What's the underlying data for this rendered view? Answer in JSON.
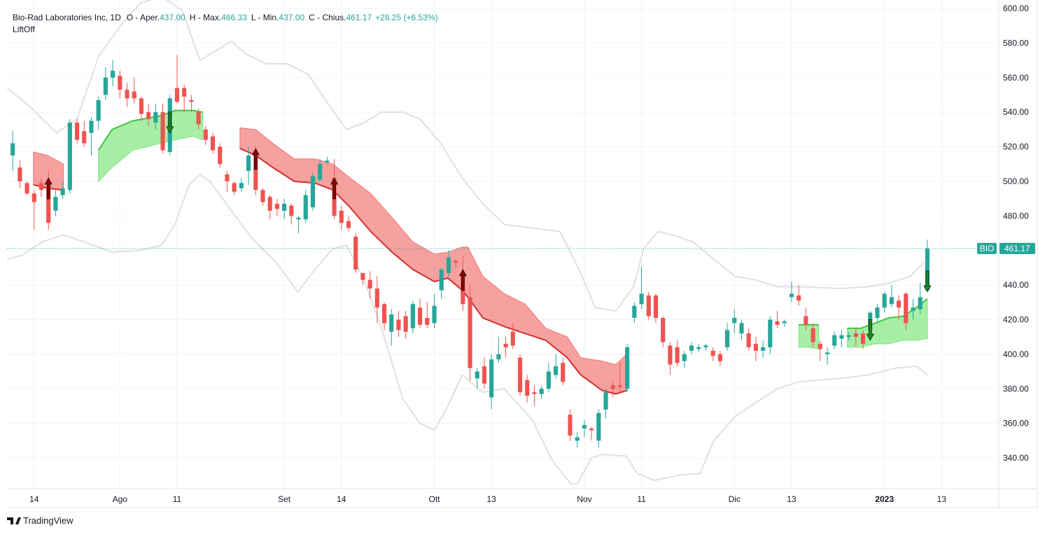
{
  "chart_data": {
    "type": "candlestick",
    "title": "Bio-Rad Laboratories Inc, 1D",
    "fields": [
      {
        "label": "O - Aper.",
        "value": "437.00"
      },
      {
        "label": "H - Max.",
        "value": "466.33"
      },
      {
        "label": "L - Min.",
        "value": "437.00"
      },
      {
        "label": "C - Chius.",
        "value": "461.17"
      }
    ],
    "change": "+28.25 (+6.53%)",
    "indicator": "LiftOff",
    "branding": "TradingView",
    "up_color": "#26a69a",
    "down_color": "#ef5350",
    "grid": true,
    "xlim": [
      -0.8,
      138
    ],
    "xticks": [
      {
        "value": 3,
        "label": "14"
      },
      {
        "value": 15,
        "label": "Ago"
      },
      {
        "value": 23,
        "label": "11"
      },
      {
        "value": 38,
        "label": "Set"
      },
      {
        "value": 46,
        "label": "14"
      },
      {
        "value": 59,
        "label": "Ott"
      },
      {
        "value": 67,
        "label": "13"
      },
      {
        "value": 80,
        "label": "Nov"
      },
      {
        "value": 88,
        "label": "11"
      },
      {
        "value": 101,
        "label": "Dic"
      },
      {
        "value": 109,
        "label": "13"
      },
      {
        "value": 122,
        "label": "2023"
      },
      {
        "value": 130,
        "label": "13"
      }
    ],
    "ylim": [
      322.2,
      604.9
    ],
    "yticks": [
      {
        "value": 340,
        "label": "340.00"
      },
      {
        "value": 360,
        "label": "360.00"
      },
      {
        "value": 380,
        "label": "380.00"
      },
      {
        "value": 400,
        "label": "400.00"
      },
      {
        "value": 420,
        "label": "420.00"
      },
      {
        "value": 440,
        "label": "440.00"
      },
      {
        "value": 460,
        "label": "460.00"
      },
      {
        "value": 480,
        "label": "480.00"
      },
      {
        "value": 500,
        "label": "500.00"
      },
      {
        "value": 520,
        "label": "520.00"
      },
      {
        "value": 540,
        "label": "540.00"
      },
      {
        "value": 560,
        "label": "560.00"
      },
      {
        "value": 580,
        "label": "580.00"
      },
      {
        "value": 600,
        "label": "600.00"
      }
    ],
    "open": [
      515,
      508,
      499,
      493,
      499,
      499,
      483,
      492,
      495,
      534,
      529,
      528,
      535,
      550,
      560,
      561,
      553,
      552,
      548,
      540,
      534,
      540,
      517,
      554,
      554,
      547,
      540,
      530,
      526,
      520,
      504,
      499,
      496,
      506,
      516,
      495,
      491,
      487,
      483,
      486,
      478,
      478,
      485,
      501,
      511,
      502,
      483,
      477,
      468,
      447,
      443,
      438,
      429,
      413,
      420,
      422,
      415,
      427,
      421,
      418,
      437,
      447,
      454,
      447,
      433,
      386,
      393,
      375,
      397,
      406,
      413,
      398,
      385,
      378,
      377,
      380,
      388,
      395,
      365,
      350,
      357,
      357,
      350,
      368,
      382,
      382,
      380,
      421,
      429,
      434,
      434,
      421,
      405,
      404,
      396,
      402,
      403,
      404,
      402,
      400,
      404,
      418,
      412,
      412,
      406,
      402,
      404,
      419,
      418,
      433,
      434,
      422,
      415,
      406,
      400,
      405,
      409,
      410,
      412,
      412,
      414,
      421,
      427,
      429,
      431,
      435,
      425,
      426,
      437
    ],
    "high": [
      529,
      512,
      500,
      495,
      502,
      506,
      495,
      500,
      536,
      536,
      535,
      537,
      549,
      566,
      570,
      564,
      557,
      560,
      549,
      545,
      545,
      545,
      550,
      573,
      556,
      550,
      542,
      532,
      528,
      522,
      506,
      500,
      502,
      520,
      520,
      496,
      492,
      490,
      490,
      487,
      480,
      495,
      505,
      513,
      514,
      513,
      486,
      480,
      470,
      447,
      448,
      445,
      430,
      426,
      425,
      425,
      431,
      432,
      430,
      435,
      450,
      460,
      455,
      457,
      440,
      392,
      398,
      400,
      410,
      410,
      418,
      400,
      388,
      382,
      382,
      395,
      400,
      398,
      368,
      355,
      362,
      358,
      368,
      380,
      384,
      395,
      406,
      430,
      451,
      436,
      435,
      422,
      407,
      408,
      402,
      407,
      406,
      406,
      404,
      402,
      418,
      426,
      420,
      415,
      410,
      408,
      422,
      425,
      420,
      442,
      440,
      427,
      418,
      408,
      404,
      413,
      414,
      413,
      415,
      414,
      425,
      429,
      436,
      440,
      434,
      436,
      432,
      441,
      466.33
    ],
    "low": [
      506,
      496,
      492,
      472,
      491,
      472,
      480,
      490,
      493,
      522,
      520,
      515,
      530,
      547,
      555,
      548,
      543,
      545,
      535,
      532,
      530,
      516,
      515,
      545,
      540,
      540,
      530,
      521,
      516,
      508,
      494,
      492,
      494,
      498,
      492,
      486,
      478,
      480,
      478,
      475,
      470,
      476,
      483,
      500,
      510,
      478,
      472,
      471,
      447,
      440,
      432,
      418,
      414,
      405,
      410,
      409,
      412,
      415,
      415,
      415,
      432,
      445,
      450,
      425,
      385,
      380,
      380,
      368,
      395,
      398,
      403,
      376,
      372,
      370,
      374,
      378,
      386,
      382,
      350,
      346,
      352,
      350,
      346,
      363,
      375,
      378,
      378,
      418,
      426,
      420,
      418,
      404,
      388,
      393,
      392,
      400,
      401,
      402,
      396,
      393,
      402,
      412,
      408,
      402,
      396,
      398,
      400,
      415,
      416,
      430,
      428,
      414,
      404,
      396,
      394,
      403,
      404,
      408,
      405,
      403,
      410,
      418,
      424,
      427,
      420,
      414,
      420,
      423,
      437
    ],
    "close": [
      522,
      500,
      493,
      488,
      495,
      476,
      491,
      496,
      534,
      524,
      522,
      535,
      547,
      560,
      564,
      553,
      548,
      548,
      539,
      536,
      540,
      518,
      548,
      546,
      549,
      546,
      533,
      524,
      518,
      510,
      500,
      494,
      499,
      515,
      495,
      488,
      483,
      484,
      487,
      480,
      479,
      492,
      503,
      510,
      512,
      480,
      476,
      473,
      449,
      443,
      438,
      427,
      418,
      423,
      414,
      413,
      429,
      417,
      417,
      428,
      449,
      456,
      453,
      429,
      392,
      390,
      383,
      397,
      400,
      404,
      405,
      378,
      376,
      377,
      380,
      390,
      393,
      384,
      353,
      352,
      359,
      356,
      366,
      378,
      380,
      381,
      404,
      428,
      435,
      422,
      421,
      407,
      394,
      395,
      400,
      405,
      404,
      405,
      399,
      396,
      414,
      421,
      418,
      404,
      402,
      404,
      420,
      417,
      419,
      435,
      431,
      417,
      407,
      403,
      401,
      411,
      411,
      411,
      410,
      406,
      424,
      427,
      435,
      433,
      427,
      418,
      427,
      433,
      461.17
    ],
    "band_color": "#e0e0e0",
    "upper_band": {
      "x": [
        -0.8,
        2.2,
        6.1,
        9,
        12,
        14.9,
        17.8,
        20.8,
        23.7,
        26.2,
        30.6,
        32.5,
        35.5,
        38.4,
        41.3,
        44.3,
        46.7,
        49.2,
        51.6,
        54.6,
        57,
        59.9,
        62.9,
        65.8,
        68.8,
        72.7,
        76.6,
        79.5,
        81.5,
        84.4,
        86.9,
        88.3,
        90.3,
        92.3,
        95.2,
        98.1,
        101.1,
        104,
        107,
        110.9,
        115.8,
        119.7,
        122.6,
        125.6,
        127.5
      ],
      "values": [
        554,
        544,
        528,
        536,
        572,
        589,
        603,
        607,
        599,
        570,
        581,
        574,
        568,
        568,
        562,
        544,
        530,
        534,
        540,
        540,
        536,
        522,
        502,
        487,
        475,
        473,
        471,
        447,
        427,
        425,
        439,
        461,
        471,
        469,
        465,
        455,
        445,
        443,
        439,
        439,
        438,
        439,
        441,
        445,
        453
      ]
    },
    "lower_band": {
      "x": [
        -0.8,
        1.2,
        4.1,
        7.1,
        10,
        13.9,
        17.8,
        20.8,
        22.7,
        24.7,
        26.2,
        27.6,
        30.6,
        33.5,
        36.9,
        39.9,
        42.3,
        44.8,
        46.7,
        49.2,
        51.6,
        54.6,
        57,
        59,
        60.9,
        62.9,
        65.8,
        68.8,
        72.7,
        75.6,
        78.1,
        79,
        81,
        82.5,
        85.9,
        87.4,
        89.8,
        93.2,
        96.2,
        98.1,
        101.1,
        104,
        107,
        110,
        112.8,
        115.8,
        119.7,
        123.6,
        126.5,
        128
      ],
      "values": [
        455,
        457,
        465,
        469,
        465,
        459,
        460,
        463,
        475,
        498,
        504,
        500,
        483,
        467,
        453,
        436,
        449,
        461,
        463,
        443,
        415,
        374,
        360,
        356,
        370,
        388,
        378,
        380,
        362,
        338,
        325,
        325,
        340,
        342,
        341,
        331,
        327,
        330,
        331,
        350,
        364,
        372,
        380,
        384,
        385,
        386,
        388,
        392,
        393,
        388
      ]
    },
    "ribbons": [
      {
        "color": "#ef5350",
        "edge_color": "#d32f2f",
        "edge": "lower",
        "x": [
          2.9,
          4.9,
          7.1
        ],
        "upper": [
          517,
          515,
          510
        ],
        "lower": [
          498,
          496,
          495
        ]
      },
      {
        "color": "#5ee05e",
        "edge_color": "#43c443",
        "edge": "upper",
        "x": [
          12,
          13.9,
          16.8,
          20.8,
          22.7,
          25.2,
          26.6
        ],
        "upper": [
          518,
          530,
          535,
          538,
          541,
          541,
          540
        ],
        "lower": [
          500,
          508,
          518,
          522,
          524,
          526,
          524
        ]
      },
      {
        "color": "#ef5350",
        "edge_color": "#d32f2f",
        "edge": "lower",
        "x": [
          31.8,
          34,
          36.4,
          39.4,
          42.3,
          44.8,
          47.2,
          50.1,
          53.1,
          56,
          59,
          60.9,
          62.9,
          63.7,
          65.8,
          68.8,
          71.7,
          74.6,
          77.6,
          79.5,
          82.5,
          84.4,
          85.9
        ],
        "upper": [
          531,
          530,
          522,
          513,
          513,
          510,
          502,
          493,
          479,
          465,
          458,
          459,
          462,
          462,
          445,
          435,
          429,
          415,
          410,
          398,
          396,
          394,
          400
        ],
        "lower": [
          519,
          515,
          508,
          500,
          499,
          495,
          485,
          471,
          459,
          449,
          442,
          444,
          437,
          433,
          421,
          416,
          412,
          408,
          398,
          388,
          379,
          377,
          379
        ]
      },
      {
        "color": "#5ee05e",
        "edge_color": "#43c443",
        "edge": "upper",
        "x": [
          110,
          111.4,
          112.8
        ],
        "upper": [
          417,
          417,
          417
        ],
        "lower": [
          404,
          404,
          403
        ]
      },
      {
        "color": "#5ee05e",
        "edge_color": "#43c443",
        "edge": "upper",
        "x": [
          116.8,
          118.7,
          120.7,
          122.6,
          124.6,
          126.5,
          128
        ],
        "upper": [
          415,
          415,
          418,
          421,
          422,
          427,
          432
        ],
        "lower": [
          404,
          404,
          406,
          406,
          408,
          408,
          409
        ]
      }
    ],
    "down_arrows": {
      "color": "#8b0000",
      "x": [
        5,
        34,
        45,
        63
      ],
      "values": [
        502,
        519,
        502,
        449
      ]
    },
    "up_arrows": {
      "color": "#1b8a1b",
      "x": [
        22,
        120,
        128
      ],
      "values": [
        528,
        408,
        436
      ]
    },
    "last_price": {
      "symbol": "BIO",
      "value": 461.17,
      "label": "461.17",
      "color": "#26a69a"
    }
  }
}
